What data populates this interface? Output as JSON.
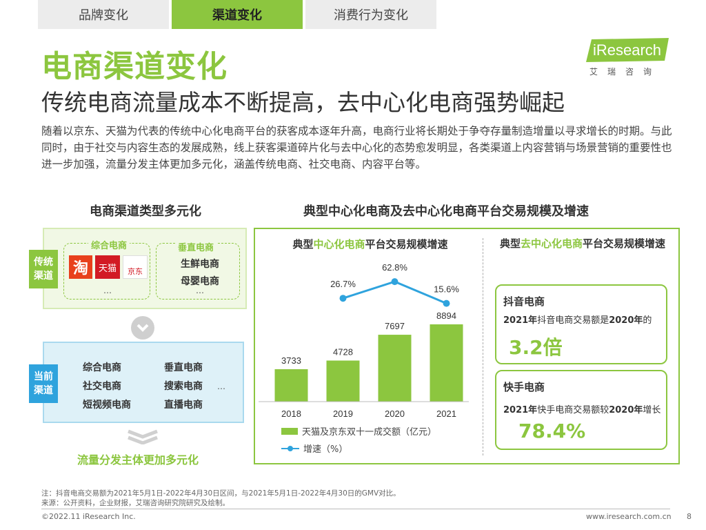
{
  "tabs": [
    "品牌变化",
    "渠道变化",
    "消费行为变化"
  ],
  "active_tab": 1,
  "logo": {
    "text": "iResearch",
    "cn": "艾瑞咨询"
  },
  "page_title": "电商渠道变化",
  "subtitle": "传统电商流量成本不断提高，去中心化电商强势崛起",
  "intro": "随着以京东、天猫为代表的传统中心化电商平台的获客成本逐年升高，电商行业将长期处于争夺存量制造增量以寻求增长的时期。与此同时，由于社交与内容生态的发展成熟，线上获客渠道碎片化与去中心化的态势愈发明显，各类渠道上内容营销与场景营销的重要性也进一步加强，流量分发主体更加多元化，涵盖传统电商、社交电商、内容平台等。",
  "left": {
    "heading": "电商渠道类型多元化",
    "traditional": {
      "tag": "传统渠道",
      "comprehensive": {
        "title": "综合电商",
        "logos": [
          "淘",
          "天猫",
          "京东"
        ],
        "more": "…"
      },
      "vertical": {
        "title": "垂直电商",
        "items": [
          "生鲜电商",
          "母婴电商"
        ],
        "more": "…"
      }
    },
    "current": {
      "tag": "当前渠道",
      "items": [
        "综合电商",
        "垂直电商",
        "社交电商",
        "搜索电商",
        "短视频电商",
        "直播电商"
      ],
      "more": "…"
    },
    "bottom": "流量分发主体更加多元化"
  },
  "right": {
    "heading": "典型中心化电商及去中心化电商平台交易规模及增速",
    "chart_title_pre": "典型",
    "chart_title_hl": "中心化电商",
    "chart_title_post": "平台交易规模增速",
    "right_title_pre": "典型",
    "right_title_hl": "去中心化电商",
    "right_title_post": "平台交易规模增速",
    "legend_bar": "天猫及京东双十一成交额（亿元）",
    "legend_line": "增速（%）",
    "cards": [
      {
        "name": "抖音电商",
        "text_pre": "2021年",
        "text_mid": "抖音电商交易额是",
        "text_post": "2020年",
        "text_tail": "的",
        "value": "3.2倍"
      },
      {
        "name": "快手电商",
        "text_pre": "2021年",
        "text_mid": "快手电商交易额较",
        "text_post": "2020年",
        "text_tail": "增长",
        "value": "78.4%"
      }
    ]
  },
  "chart_data": {
    "type": "bar",
    "categories": [
      "2018",
      "2019",
      "2020",
      "2021"
    ],
    "series": [
      {
        "name": "天猫及京东双十一成交额（亿元）",
        "type": "bar",
        "values": [
          3733,
          4728,
          7697,
          8894
        ]
      },
      {
        "name": "增速（%）",
        "type": "line",
        "x": [
          "2019",
          "2020",
          "2021"
        ],
        "values": [
          26.7,
          62.8,
          15.6
        ],
        "labels": [
          "26.7%",
          "62.8%",
          "15.6%"
        ]
      }
    ],
    "colors": {
      "bar": "#8cc63f",
      "line": "#2fa3dd"
    }
  },
  "notes": [
    "注：抖音电商交易额为2021年5月1日-2022年4月30日区间，与2021年5月1日-2022年4月30日的GMV对比。",
    "来源：公开资料，企业财报，艾瑞咨询研究院研究及绘制。"
  ],
  "footer": {
    "copyright": "©2022.11 iResearch Inc.",
    "url": "www.iresearch.com.cn",
    "page": "8"
  }
}
